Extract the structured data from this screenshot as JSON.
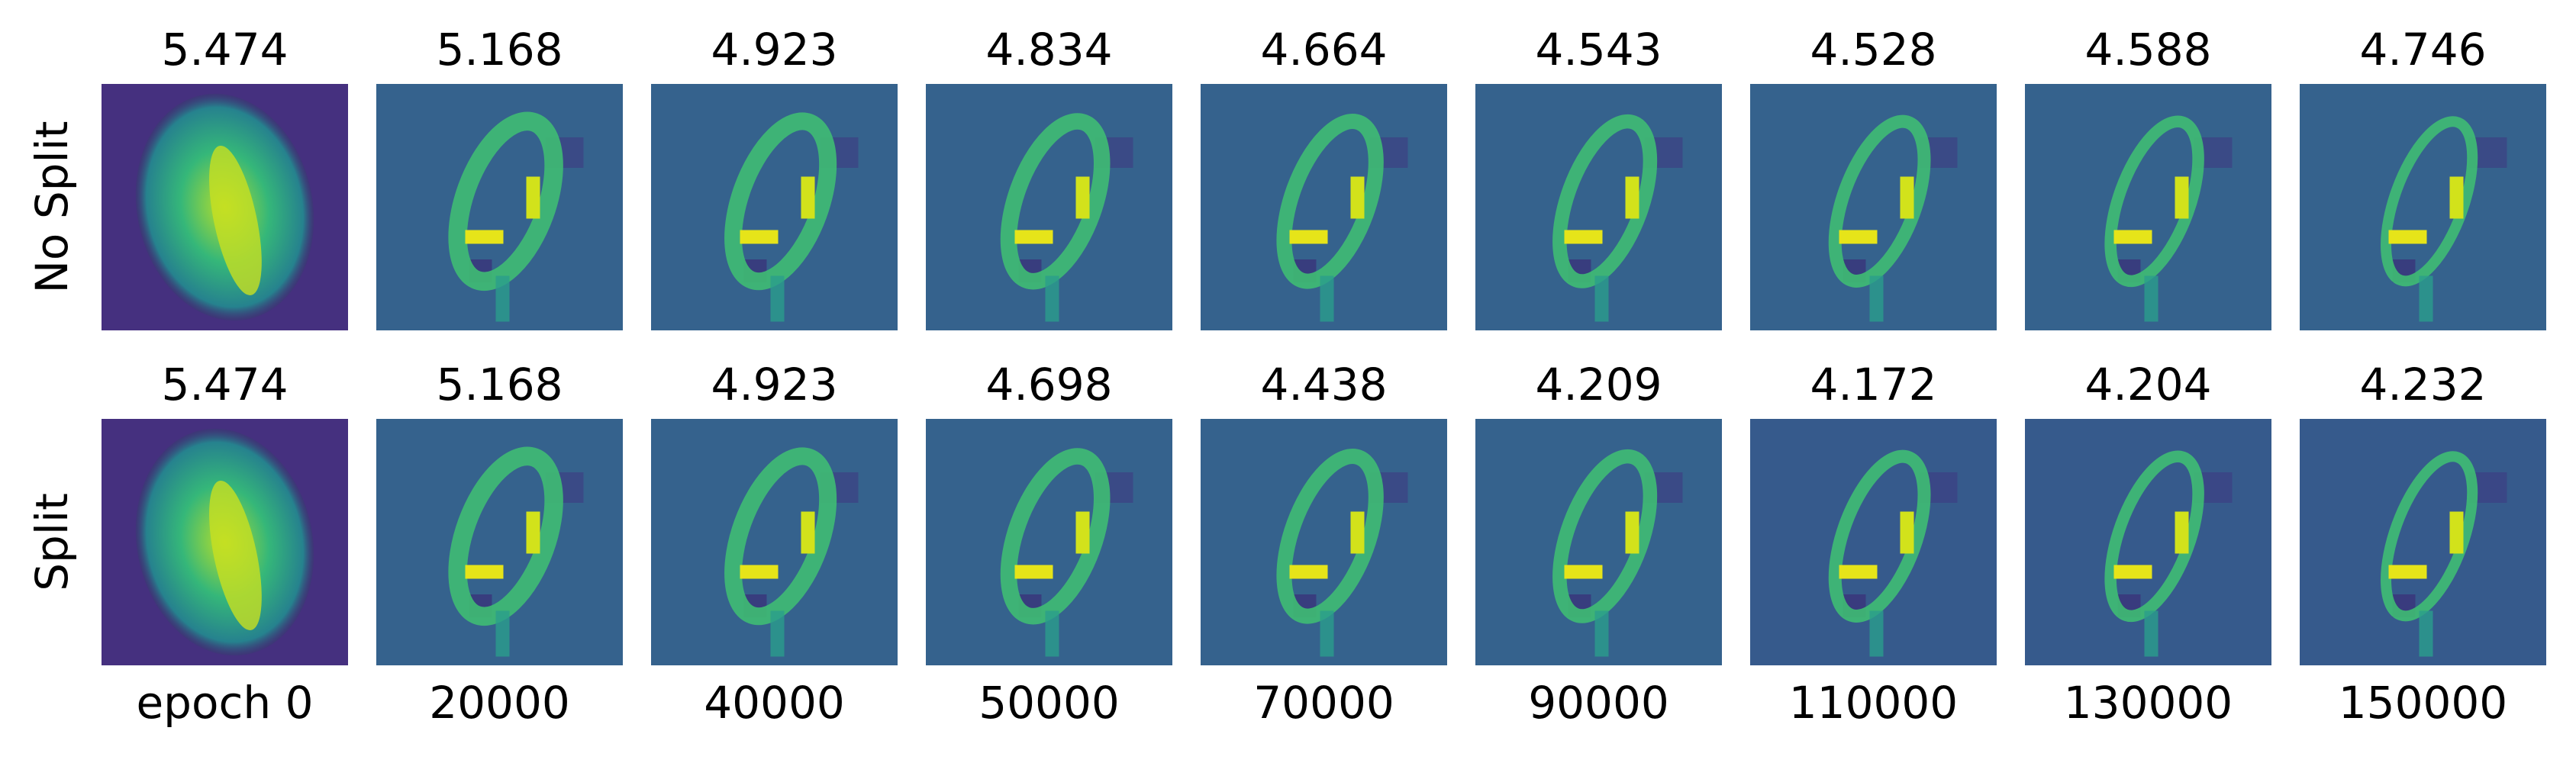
{
  "rows": [
    {
      "label": "No Split",
      "scores": [
        5.474,
        5.168,
        4.923,
        4.834,
        4.664,
        4.543,
        4.528,
        4.588,
        4.746
      ]
    },
    {
      "label": "Split",
      "scores": [
        5.474,
        5.168,
        4.923,
        4.698,
        4.438,
        4.209,
        4.172,
        4.204,
        4.232
      ]
    }
  ],
  "columns": [
    "epoch 0",
    "20000",
    "40000",
    "50000",
    "70000",
    "90000",
    "110000",
    "130000",
    "150000"
  ]
}
